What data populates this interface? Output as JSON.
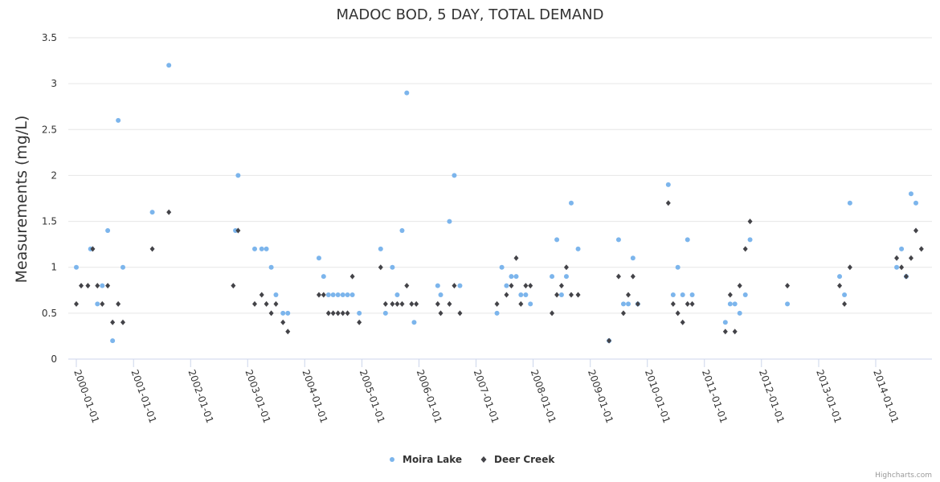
{
  "chart_data": {
    "type": "scatter",
    "title": "MADOC BOD, 5 DAY, TOTAL DEMAND",
    "xlabel": "",
    "ylabel": "Measurements (mg/L)",
    "ylim": [
      0,
      3.5
    ],
    "xlim": [
      "2000-01-01",
      "2014-09-30"
    ],
    "yticks": [
      "0",
      "0.5",
      "1",
      "1.5",
      "2",
      "2.5",
      "3",
      "3.5"
    ],
    "xticks": [
      "2000-01-01",
      "2001-01-01",
      "2002-01-01",
      "2003-01-01",
      "2004-01-01",
      "2005-01-01",
      "2006-01-01",
      "2007-01-01",
      "2008-01-01",
      "2009-01-01",
      "2010-01-01",
      "2011-01-01",
      "2012-01-01",
      "2013-01-01",
      "2014-01-01"
    ],
    "grid": "horizontal",
    "legend": "bottom-center",
    "series": [
      {
        "name": "Moira Lake",
        "color": "#7cb5ec",
        "marker": "circle",
        "points": [
          [
            "2000-01-01",
            1.0
          ],
          [
            "2000-04-01",
            1.2
          ],
          [
            "2000-05-15",
            0.6
          ],
          [
            "2000-06-15",
            0.8
          ],
          [
            "2000-07-20",
            1.4
          ],
          [
            "2000-08-20",
            0.2
          ],
          [
            "2000-09-25",
            2.6
          ],
          [
            "2000-10-25",
            1.0
          ],
          [
            "2001-05-01",
            1.6
          ],
          [
            "2001-08-15",
            3.2
          ],
          [
            "2002-10-15",
            1.4
          ],
          [
            "2002-11-01",
            2.0
          ],
          [
            "2003-02-15",
            1.2
          ],
          [
            "2003-04-01",
            1.2
          ],
          [
            "2003-05-01",
            1.2
          ],
          [
            "2003-06-01",
            1.0
          ],
          [
            "2003-07-01",
            0.7
          ],
          [
            "2003-08-15",
            0.5
          ],
          [
            "2003-09-15",
            0.5
          ],
          [
            "2004-04-01",
            1.1
          ],
          [
            "2004-05-01",
            0.9
          ],
          [
            "2004-06-01",
            0.7
          ],
          [
            "2004-07-01",
            0.7
          ],
          [
            "2004-08-01",
            0.7
          ],
          [
            "2004-09-01",
            0.7
          ],
          [
            "2004-10-01",
            0.7
          ],
          [
            "2004-11-01",
            0.7
          ],
          [
            "2004-12-15",
            0.5
          ],
          [
            "2005-05-01",
            1.2
          ],
          [
            "2005-06-01",
            0.5
          ],
          [
            "2005-07-15",
            1.0
          ],
          [
            "2005-08-15",
            0.7
          ],
          [
            "2005-09-15",
            1.4
          ],
          [
            "2005-10-15",
            2.9
          ],
          [
            "2005-12-01",
            0.4
          ],
          [
            "2006-05-01",
            0.8
          ],
          [
            "2006-05-20",
            0.7
          ],
          [
            "2006-07-15",
            1.5
          ],
          [
            "2006-08-15",
            2.0
          ],
          [
            "2006-09-20",
            0.8
          ],
          [
            "2007-05-15",
            0.5
          ],
          [
            "2007-06-15",
            1.0
          ],
          [
            "2007-07-15",
            0.8
          ],
          [
            "2007-08-15",
            0.9
          ],
          [
            "2007-09-15",
            0.9
          ],
          [
            "2007-10-15",
            0.7
          ],
          [
            "2007-11-15",
            0.7
          ],
          [
            "2007-12-15",
            0.6
          ],
          [
            "2008-05-01",
            0.9
          ],
          [
            "2008-06-01",
            1.3
          ],
          [
            "2008-07-01",
            0.7
          ],
          [
            "2008-08-01",
            0.9
          ],
          [
            "2008-09-01",
            1.7
          ],
          [
            "2008-10-15",
            1.2
          ],
          [
            "2009-05-01",
            0.2
          ],
          [
            "2009-07-01",
            1.3
          ],
          [
            "2009-08-01",
            0.6
          ],
          [
            "2009-09-01",
            0.6
          ],
          [
            "2009-10-01",
            1.1
          ],
          [
            "2009-11-01",
            0.6
          ],
          [
            "2010-05-15",
            1.9
          ],
          [
            "2010-06-15",
            0.7
          ],
          [
            "2010-07-15",
            1.0
          ],
          [
            "2010-08-15",
            0.7
          ],
          [
            "2010-09-15",
            1.3
          ],
          [
            "2010-10-15",
            0.7
          ],
          [
            "2011-05-15",
            0.4
          ],
          [
            "2011-06-15",
            0.6
          ],
          [
            "2011-07-15",
            0.6
          ],
          [
            "2011-08-15",
            0.5
          ],
          [
            "2011-09-20",
            0.7
          ],
          [
            "2011-10-20",
            1.3
          ],
          [
            "2012-06-15",
            0.6
          ],
          [
            "2013-05-15",
            0.9
          ],
          [
            "2013-06-15",
            0.7
          ],
          [
            "2013-07-20",
            1.7
          ],
          [
            "2014-05-15",
            1.0
          ],
          [
            "2014-06-15",
            1.2
          ],
          [
            "2014-07-15",
            0.9
          ],
          [
            "2014-08-15",
            1.8
          ],
          [
            "2014-09-15",
            1.7
          ]
        ]
      },
      {
        "name": "Deer Creek",
        "color": "#434348",
        "marker": "diamond",
        "points": [
          [
            "2000-01-01",
            0.6
          ],
          [
            "2000-02-01",
            0.8
          ],
          [
            "2000-03-15",
            0.8
          ],
          [
            "2000-04-15",
            1.2
          ],
          [
            "2000-05-15",
            0.8
          ],
          [
            "2000-06-15",
            0.6
          ],
          [
            "2000-07-20",
            0.8
          ],
          [
            "2000-08-20",
            0.4
          ],
          [
            "2000-09-25",
            0.6
          ],
          [
            "2000-10-25",
            0.4
          ],
          [
            "2001-05-01",
            1.2
          ],
          [
            "2001-08-15",
            1.6
          ],
          [
            "2002-10-01",
            0.8
          ],
          [
            "2002-11-01",
            1.4
          ],
          [
            "2003-02-15",
            0.6
          ],
          [
            "2003-04-01",
            0.7
          ],
          [
            "2003-05-01",
            0.6
          ],
          [
            "2003-06-01",
            0.5
          ],
          [
            "2003-07-01",
            0.6
          ],
          [
            "2003-08-15",
            0.4
          ],
          [
            "2003-09-15",
            0.3
          ],
          [
            "2004-04-01",
            0.7
          ],
          [
            "2004-05-01",
            0.7
          ],
          [
            "2004-06-01",
            0.5
          ],
          [
            "2004-07-01",
            0.5
          ],
          [
            "2004-08-01",
            0.5
          ],
          [
            "2004-09-01",
            0.5
          ],
          [
            "2004-10-01",
            0.5
          ],
          [
            "2004-11-01",
            0.9
          ],
          [
            "2004-12-15",
            0.4
          ],
          [
            "2005-05-01",
            1.0
          ],
          [
            "2005-06-01",
            0.6
          ],
          [
            "2005-07-15",
            0.6
          ],
          [
            "2005-08-15",
            0.6
          ],
          [
            "2005-09-15",
            0.6
          ],
          [
            "2005-10-15",
            0.8
          ],
          [
            "2005-11-15",
            0.6
          ],
          [
            "2005-12-15",
            0.6
          ],
          [
            "2006-05-01",
            0.6
          ],
          [
            "2006-05-20",
            0.5
          ],
          [
            "2006-07-15",
            0.6
          ],
          [
            "2006-08-15",
            0.8
          ],
          [
            "2006-09-20",
            0.5
          ],
          [
            "2007-05-15",
            0.6
          ],
          [
            "2007-07-15",
            0.7
          ],
          [
            "2007-08-15",
            0.8
          ],
          [
            "2007-09-15",
            1.1
          ],
          [
            "2007-10-15",
            0.6
          ],
          [
            "2007-11-15",
            0.8
          ],
          [
            "2007-12-15",
            0.8
          ],
          [
            "2008-05-01",
            0.5
          ],
          [
            "2008-06-01",
            0.7
          ],
          [
            "2008-07-01",
            0.8
          ],
          [
            "2008-08-01",
            1.0
          ],
          [
            "2008-09-01",
            0.7
          ],
          [
            "2008-10-15",
            0.7
          ],
          [
            "2009-05-01",
            0.2
          ],
          [
            "2009-07-01",
            0.9
          ],
          [
            "2009-08-01",
            0.5
          ],
          [
            "2009-09-01",
            0.7
          ],
          [
            "2009-10-01",
            0.9
          ],
          [
            "2009-11-01",
            0.6
          ],
          [
            "2010-05-15",
            1.7
          ],
          [
            "2010-06-15",
            0.6
          ],
          [
            "2010-07-15",
            0.5
          ],
          [
            "2010-08-15",
            0.4
          ],
          [
            "2010-09-15",
            0.6
          ],
          [
            "2010-10-15",
            0.6
          ],
          [
            "2011-05-15",
            0.3
          ],
          [
            "2011-06-15",
            0.7
          ],
          [
            "2011-07-15",
            0.3
          ],
          [
            "2011-08-15",
            0.8
          ],
          [
            "2011-09-20",
            1.2
          ],
          [
            "2011-10-20",
            1.5
          ],
          [
            "2012-06-15",
            0.8
          ],
          [
            "2013-05-15",
            0.8
          ],
          [
            "2013-06-15",
            0.6
          ],
          [
            "2013-07-20",
            1.0
          ],
          [
            "2014-05-15",
            1.1
          ],
          [
            "2014-06-15",
            1.0
          ],
          [
            "2014-07-15",
            0.9
          ],
          [
            "2014-08-15",
            1.1
          ],
          [
            "2014-09-15",
            1.4
          ],
          [
            "2014-10-20",
            1.2
          ]
        ]
      }
    ]
  },
  "credit": "Highcharts.com"
}
